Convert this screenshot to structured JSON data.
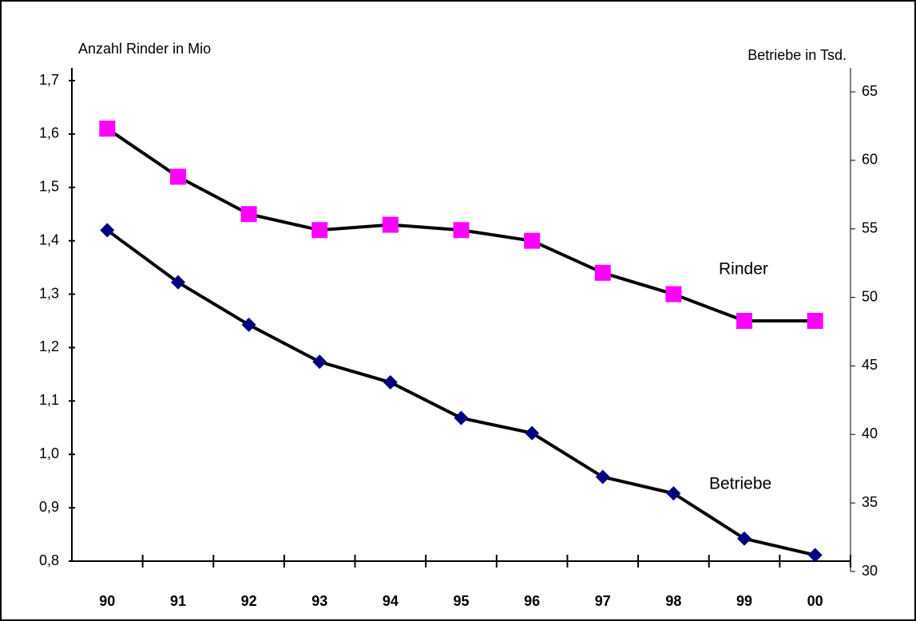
{
  "chart_data": {
    "type": "line",
    "y_label": "Anzahl Rinder in Mio",
    "y2_label": "Betriebe in Tsd.",
    "categories": [
      "90",
      "91",
      "92",
      "93",
      "94",
      "95",
      "96",
      "97",
      "98",
      "99",
      "00"
    ],
    "series": [
      {
        "name": "Rinder",
        "color": "#ff00ff",
        "marker": "square",
        "values": [
          1.61,
          1.52,
          1.45,
          1.42,
          1.43,
          1.42,
          1.4,
          1.34,
          1.3,
          1.25,
          1.25
        ]
      },
      {
        "name": "Betriebe",
        "color": "#000080",
        "marker": "diamond",
        "axis": "y2",
        "values": [
          54.9,
          51.1,
          48.0,
          45.3,
          43.8,
          41.2,
          40.1,
          36.9,
          35.7,
          32.4,
          31.2
        ]
      }
    ],
    "ylim": [
      0.8,
      1.7
    ],
    "yticks": [
      {
        "value": 0.8,
        "label": "0,8"
      },
      {
        "value": 0.9,
        "label": "0,9"
      },
      {
        "value": 1.0,
        "label": "1,0"
      },
      {
        "value": 1.1,
        "label": "1,1"
      },
      {
        "value": 1.2,
        "label": "1,2"
      },
      {
        "value": 1.3,
        "label": "1,3"
      },
      {
        "value": 1.4,
        "label": "1,4"
      },
      {
        "value": 1.5,
        "label": "1,5"
      },
      {
        "value": 1.6,
        "label": "1,6"
      },
      {
        "value": 1.7,
        "label": "1,7"
      }
    ],
    "y2lim": [
      30,
      65
    ],
    "y2ticks": [
      30,
      35,
      40,
      45,
      50,
      55,
      60,
      65
    ],
    "grid": false
  }
}
